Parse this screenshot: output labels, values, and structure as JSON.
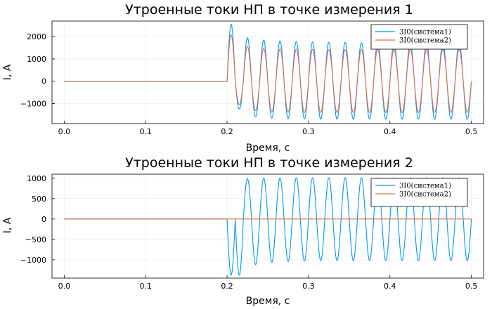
{
  "chart_data": [
    {
      "type": "line",
      "title": "Утроенные токи НП в точке измерения 1",
      "xlabel": "Время, с",
      "ylabel": "I, A",
      "xlim": [
        -0.015,
        0.515
      ],
      "ylim": [
        -1900,
        2700
      ],
      "xticks": [
        0.0,
        0.1,
        0.2,
        0.3,
        0.4,
        0.5
      ],
      "xtick_labels": [
        "0.0",
        "0.1",
        "0.2",
        "0.3",
        "0.4",
        "0.5"
      ],
      "yticks": [
        -1000,
        0,
        1000,
        2000
      ],
      "ytick_labels": [
        "−1000",
        "0",
        "1000",
        "2000"
      ],
      "grid": true,
      "legend_position": "top-right",
      "fault_time": 0.2,
      "frequency_hz": 50,
      "x_end": 0.5,
      "series": [
        {
          "name": "3I0(система1)",
          "color": "#009AFA",
          "peak_envelope": [
            2550,
            1950,
            1850,
            1800,
            1780,
            1760,
            1750,
            1740,
            1730,
            1725,
            1720,
            1715,
            1710,
            1705,
            1700
          ],
          "trough_envelope": [
            -1250,
            -1600,
            -1650,
            -1680,
            -1690,
            -1700,
            -1700,
            -1700,
            -1700,
            -1700,
            -1700,
            -1700,
            -1700,
            -1700,
            -1700
          ]
        },
        {
          "name": "3I0(система2)",
          "color": "#E26F46",
          "peak_envelope": [
            2080,
            1560,
            1480,
            1450,
            1440,
            1430,
            1420,
            1420,
            1420,
            1420,
            1420,
            1420,
            1420,
            1420,
            1420
          ],
          "trough_envelope": [
            -1050,
            -1320,
            -1380,
            -1390,
            -1400,
            -1400,
            -1400,
            -1400,
            -1400,
            -1400,
            -1400,
            -1400,
            -1400,
            -1400,
            -1400
          ]
        }
      ]
    },
    {
      "type": "line",
      "title": "Утроенные токи НП в точке измерения 2",
      "xlabel": "Время, с",
      "ylabel": "I, A",
      "xlim": [
        -0.015,
        0.515
      ],
      "ylim": [
        -1450,
        1100
      ],
      "xticks": [
        0.0,
        0.1,
        0.2,
        0.3,
        0.4,
        0.5
      ],
      "xtick_labels": [
        "0.0",
        "0.1",
        "0.2",
        "0.3",
        "0.4",
        "0.5"
      ],
      "yticks": [
        -1000,
        -500,
        0,
        500,
        1000
      ],
      "ytick_labels": [
        "−1000",
        "−500",
        "0",
        "500",
        "1000"
      ],
      "grid": true,
      "legend_position": "top-right",
      "fault_time": 0.2,
      "frequency_hz": 50,
      "x_end": 0.5,
      "series": [
        {
          "name": "3I0(система1)",
          "color": "#009AFA",
          "peak_envelope": [
            880,
            990,
            1000,
            1005,
            1010,
            1010,
            1010,
            1010,
            1010,
            1010,
            1010,
            1010,
            1010,
            1010,
            1010
          ],
          "trough_envelope": [
            -1380,
            -1120,
            -1060,
            -1040,
            -1030,
            -1020,
            -1020,
            -1020,
            -1020,
            -1020,
            -1020,
            -1020,
            -1020,
            -1020,
            -1020
          ]
        },
        {
          "name": "3I0(система2)",
          "color": "#E26F46",
          "peak_envelope": [
            0,
            0,
            0,
            0,
            0,
            0,
            0,
            0,
            0,
            0,
            0,
            0,
            0,
            0,
            0
          ],
          "trough_envelope": [
            0,
            0,
            0,
            0,
            0,
            0,
            0,
            0,
            0,
            0,
            0,
            0,
            0,
            0,
            0
          ]
        }
      ]
    }
  ]
}
